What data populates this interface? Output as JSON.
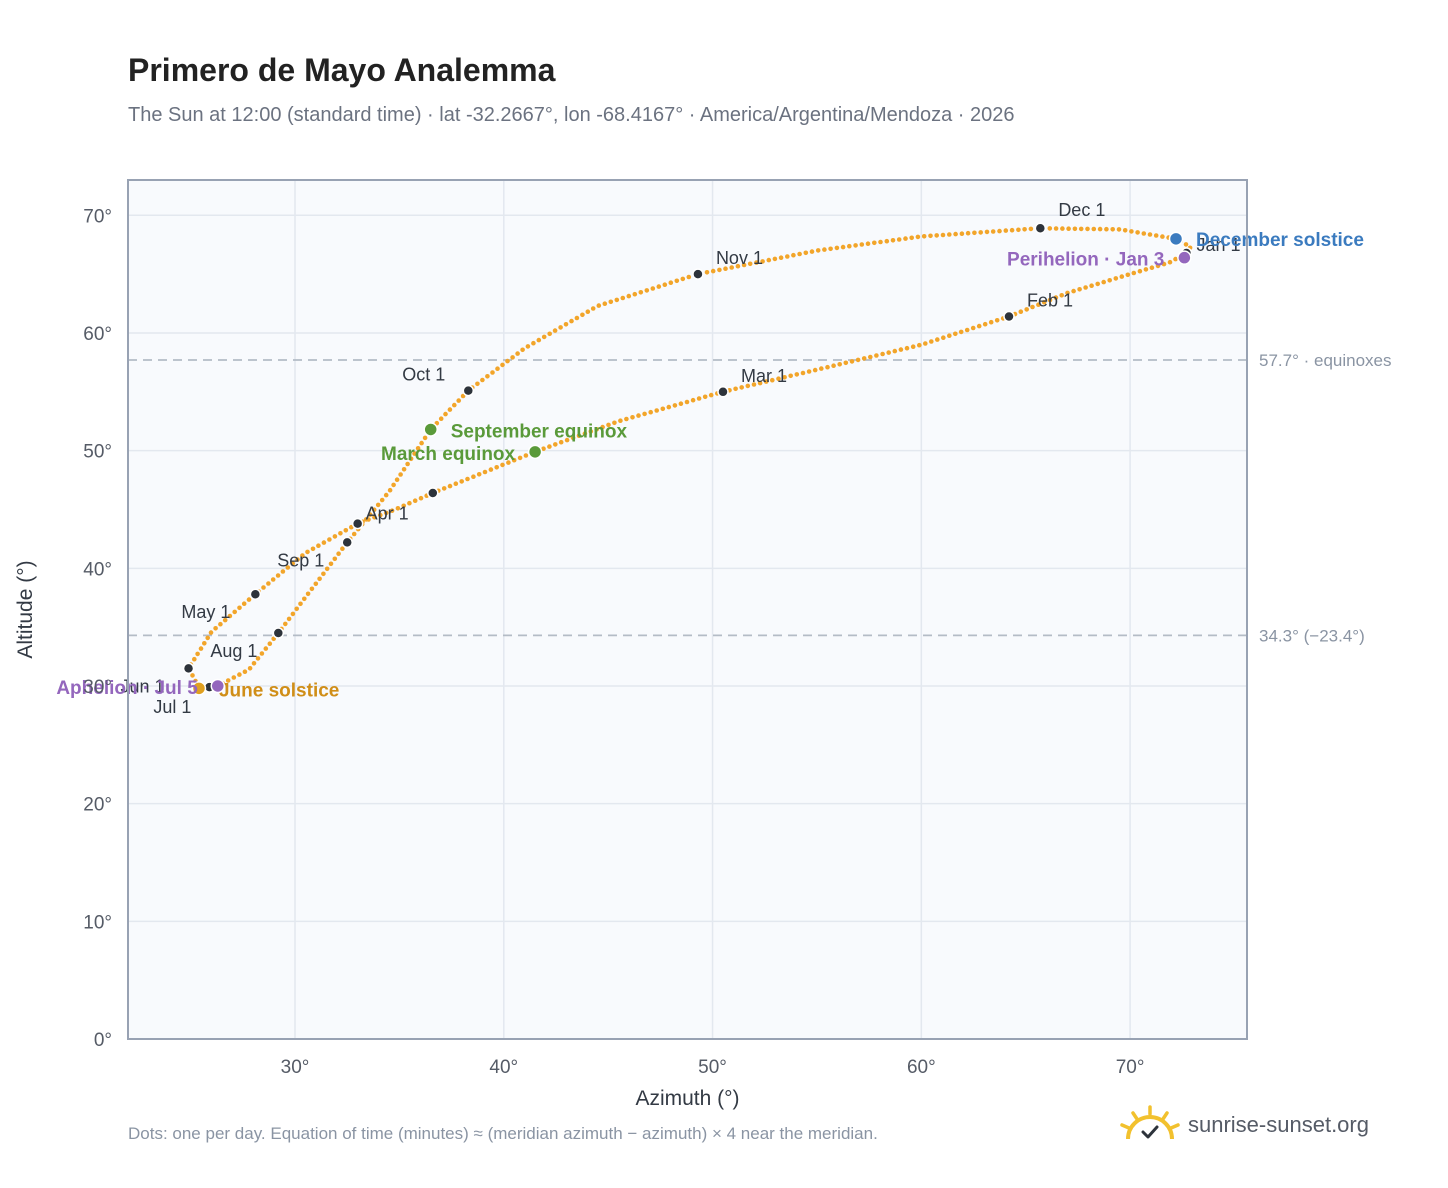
{
  "title": "Primero de Mayo Analemma",
  "subtitle": "The Sun at 12:00 (standard time) · lat -32.2667°, lon -68.4167° · America/Argentina/Mendoza · 2026",
  "footnote": "Dots: one per day. Equation of time (minutes) ≈ (meridian azimuth − azimuth) × 4 near the meridian.",
  "brand": "sunrise-sunset.org",
  "colors": {
    "curve": "#f2a52a",
    "month_dot": "#2d333b",
    "equinox": "#5a9a3a",
    "december_solstice": "#3b7bbf",
    "june_solstice": "#e0a020",
    "june_solstice_text": "#d08e18",
    "apsis": "#9467bd",
    "plot_bg": "#f8fafd",
    "grid": "#e3e8ef",
    "axis": "#98a2b3"
  },
  "chart_data": {
    "type": "scatter",
    "xlabel": "Azimuth (°)",
    "ylabel": "Altitude (°)",
    "xlim": [
      22,
      75.6
    ],
    "ylim": [
      0,
      73
    ],
    "xticks": [
      "30°",
      "40°",
      "50°",
      "60°",
      "70°"
    ],
    "xtick_values": [
      30,
      40,
      50,
      60,
      70
    ],
    "yticks": [
      "0°",
      "10°",
      "20°",
      "30°",
      "40°",
      "50°",
      "60°",
      "70°"
    ],
    "ytick_values": [
      0,
      10,
      20,
      30,
      40,
      50,
      60,
      70
    ],
    "grid": true,
    "reference_lines": [
      {
        "y": 57.7,
        "label": "57.7° · equinoxes"
      },
      {
        "y": 34.3,
        "label": "34.3° (−23.4°)"
      }
    ],
    "path": [
      [
        72.7,
        66.8
      ],
      [
        71.9,
        66.0
      ],
      [
        70.0,
        65.0
      ],
      [
        67.0,
        63.4
      ],
      [
        64.2,
        61.4
      ],
      [
        60.0,
        59.0
      ],
      [
        56.0,
        57.3
      ],
      [
        50.5,
        55.0
      ],
      [
        45.5,
        52.5
      ],
      [
        41.5,
        49.9
      ],
      [
        36.6,
        46.4
      ],
      [
        34.8,
        45.0
      ],
      [
        33.0,
        43.8
      ],
      [
        30.5,
        41.3
      ],
      [
        28.1,
        37.8
      ],
      [
        26.0,
        34.6
      ],
      [
        24.9,
        31.5
      ],
      [
        25.4,
        29.9
      ],
      [
        26.3,
        30.0
      ],
      [
        27.8,
        31.4
      ],
      [
        29.2,
        34.5
      ],
      [
        31.0,
        38.7
      ],
      [
        32.5,
        42.2
      ],
      [
        34.5,
        46.5
      ],
      [
        36.5,
        51.8
      ],
      [
        38.3,
        55.1
      ],
      [
        41.0,
        58.7
      ],
      [
        44.5,
        62.3
      ],
      [
        49.3,
        65.0
      ],
      [
        55.0,
        67.0
      ],
      [
        60.0,
        68.2
      ],
      [
        65.7,
        68.9
      ],
      [
        69.5,
        68.8
      ],
      [
        72.2,
        68.0
      ],
      [
        72.9,
        67.3
      ],
      [
        72.7,
        66.8
      ]
    ],
    "month_markers": [
      {
        "label": "Jan 1",
        "x": 72.7,
        "y": 66.8
      },
      {
        "label": "Feb 1",
        "x": 64.2,
        "y": 61.4
      },
      {
        "label": "Mar 1",
        "x": 50.5,
        "y": 55.0
      },
      {
        "label": "Apr 1",
        "x": 33.0,
        "y": 43.8
      },
      {
        "label": "",
        "x": 36.6,
        "y": 46.4
      },
      {
        "label": "May 1",
        "x": 28.1,
        "y": 37.8
      },
      {
        "label": "Jun 1",
        "x": 24.9,
        "y": 31.5
      },
      {
        "label": "Jul 1",
        "x": 25.9,
        "y": 29.9
      },
      {
        "label": "Aug 1",
        "x": 29.2,
        "y": 34.5
      },
      {
        "label": "Sep 1",
        "x": 32.5,
        "y": 42.2
      },
      {
        "label": "Oct 1",
        "x": 38.3,
        "y": 55.1
      },
      {
        "label": "Nov 1",
        "x": 49.3,
        "y": 65.0
      },
      {
        "label": "Dec 1",
        "x": 65.7,
        "y": 68.9
      }
    ],
    "events": [
      {
        "label": "December solstice",
        "x": 72.2,
        "y": 68.0,
        "kind": "december_solstice"
      },
      {
        "label": "Perihelion · Jan 3",
        "x": 72.6,
        "y": 66.4,
        "kind": "apsis"
      },
      {
        "label": "September equinox",
        "x": 36.5,
        "y": 51.8,
        "kind": "equinox"
      },
      {
        "label": "March equinox",
        "x": 41.5,
        "y": 49.9,
        "kind": "equinox"
      },
      {
        "label": "June solstice",
        "x": 25.4,
        "y": 29.8,
        "kind": "june_solstice"
      },
      {
        "label": "Aphelion · Jul 5",
        "x": 26.3,
        "y": 30.0,
        "kind": "apsis"
      }
    ]
  }
}
